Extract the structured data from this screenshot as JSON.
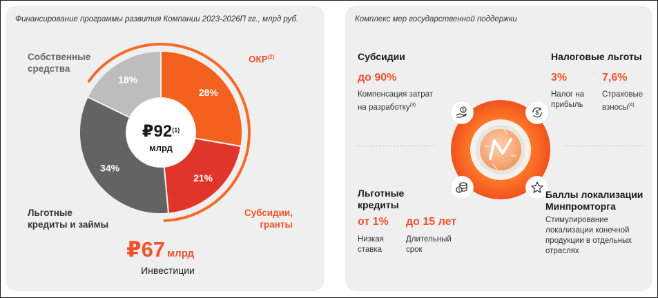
{
  "left_panel": {
    "title": "Финансирование программы развития Компании 2023-2026П гг., млрд руб.",
    "center": {
      "value": "₽92",
      "footnote": "(1)",
      "unit": "млрд"
    },
    "investment": {
      "value": "₽67",
      "unit": "млрд",
      "label": "Инвестиции"
    }
  },
  "chart_data": {
    "type": "pie",
    "subtype": "donut",
    "title": "Финансирование программы развития Компании 2023-2026П гг., млрд руб.",
    "total_label": "₽92 млрд",
    "slices": [
      {
        "name": "ОКР",
        "footnote": "(2)",
        "value": 28,
        "label": "28%",
        "color": "#f4611e"
      },
      {
        "name": "Субсидии, гранты",
        "value": 21,
        "label": "21%",
        "color": "#e0352b"
      },
      {
        "name": "Льготные кредиты и займы",
        "value": 34,
        "label": "34%",
        "color": "#636363"
      },
      {
        "name": "Собственные средства",
        "value": 18,
        "label": "18%",
        "color": "#bdbdbd"
      }
    ],
    "legend_labels": {
      "okr": "ОКР",
      "okr_note": "(2)",
      "subsidies_line1": "Субсидии,",
      "subsidies_line2": "гранты",
      "credits_line1": "Льготные",
      "credits_line2": "кредиты и займы",
      "own_line1": "Собственные",
      "own_line2": "средства"
    }
  },
  "right_panel": {
    "title": "Комплекс мер государственной поддержки",
    "subsidies": {
      "heading": "Субсидии",
      "value": "до 90%",
      "desc_line1": "Компенсация затрат",
      "desc_line2": "на разработку",
      "desc_note": "(3)"
    },
    "tax": {
      "heading": "Налоговые льготы",
      "item1_value": "3%",
      "item1_line1": "Налог на",
      "item1_line2": "прибыль",
      "item2_value": "7,6%",
      "item2_line1": "Страховые",
      "item2_line2": "взносы",
      "item2_note": "(4)"
    },
    "credits": {
      "heading_line1": "Льготные",
      "heading_line2": "кредиты",
      "item1_value": "от 1%",
      "item1_line1": "Низкая",
      "item1_line2": "ставка",
      "item2_value": "до 15 лет",
      "item2_line1": "Длительный",
      "item2_line2": "срок"
    },
    "localization": {
      "heading_line1": "Баллы локализации",
      "heading_line2": "Минпромторга",
      "desc_line1": "Стимулирование",
      "desc_line2": "локализации конечной",
      "desc_line3": "продукции в отдельных",
      "desc_line4": "отраслях"
    },
    "icons": {
      "top_left": "hand-coin-icon",
      "top_right": "dollar-cycle-icon",
      "bottom_left": "coin-stack-icon",
      "bottom_right": "star-icon"
    }
  },
  "colors": {
    "orange": "#f0522a",
    "red": "#e0352b",
    "dark_gray": "#636363",
    "light_gray": "#bdbdbd"
  }
}
